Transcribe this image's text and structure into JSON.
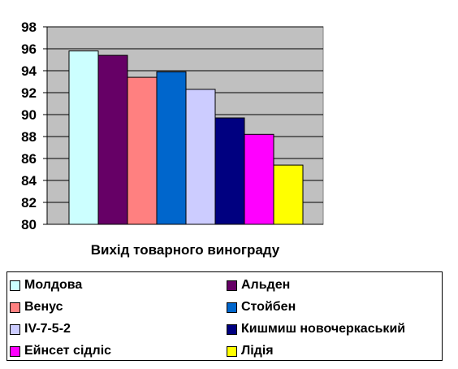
{
  "chart_data": {
    "type": "bar",
    "title": "",
    "xlabel": "Вихід товарного винограду",
    "ylabel": "",
    "ylim": [
      80,
      98
    ],
    "yticks": [
      80,
      82,
      84,
      86,
      88,
      90,
      92,
      94,
      96,
      98
    ],
    "grid": true,
    "plot_background": "#c0c0c0",
    "legend_position": "bottom",
    "series": [
      {
        "name": "Молдова",
        "value": 95.8,
        "color": "#ccffff"
      },
      {
        "name": "Альден",
        "value": 95.4,
        "color": "#660066"
      },
      {
        "name": "Венус",
        "value": 93.4,
        "color": "#ff8080"
      },
      {
        "name": "Стойбен",
        "value": 93.9,
        "color": "#0066cc"
      },
      {
        "name": "IV-7-5-2",
        "value": 92.3,
        "color": "#ccccff"
      },
      {
        "name": "Кишмиш новочеркаський",
        "value": 89.7,
        "color": "#000080"
      },
      {
        "name": "Ейнсет сідліс",
        "value": 88.2,
        "color": "#ff00ff"
      },
      {
        "name": "Лідія",
        "value": 85.4,
        "color": "#ffff00"
      }
    ]
  }
}
